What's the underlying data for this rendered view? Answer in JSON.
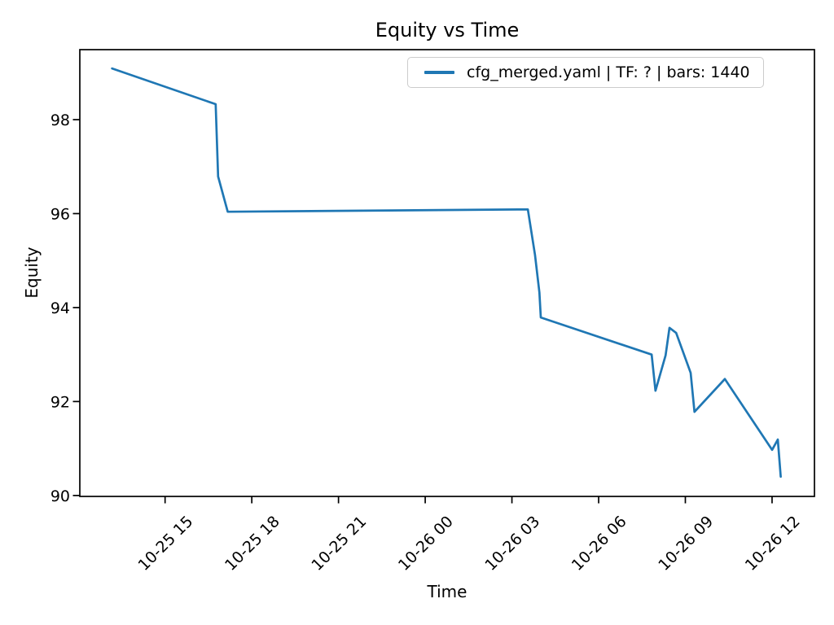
{
  "chart_data": {
    "type": "line",
    "title": "Equity vs Time",
    "xlabel": "Time",
    "ylabel": "Equity",
    "grid": false,
    "legend_position": "upper right",
    "background_color": "#ffffff",
    "frame_color": "#000000",
    "x_ticks": [
      "10-25 15",
      "10-25 18",
      "10-25 21",
      "10-26 00",
      "10-26 03",
      "10-26 06",
      "10-26 09",
      "10-26 12"
    ],
    "x_tick_rotation_deg": 45,
    "y_ticks": [
      90,
      92,
      94,
      96,
      98
    ],
    "xlim": [
      "10-25 12:03",
      "10-26 13:28"
    ],
    "ylim": [
      89.98,
      99.49
    ],
    "series": [
      {
        "name": "cfg_merged.yaml | TF: ? | bars: 1440",
        "color": "#1f77b4",
        "line_width": 2.7,
        "points": [
          {
            "time": "10-25 13:10",
            "equity": 99.09
          },
          {
            "time": "10-25 16:45",
            "equity": 98.33
          },
          {
            "time": "10-25 16:50",
            "equity": 96.79
          },
          {
            "time": "10-25 17:10",
            "equity": 96.04
          },
          {
            "time": "10-26 03:33",
            "equity": 96.09
          },
          {
            "time": "10-26 03:48",
            "equity": 95.12
          },
          {
            "time": "10-26 03:57",
            "equity": 94.32
          },
          {
            "time": "10-26 04:00",
            "equity": 93.79
          },
          {
            "time": "10-26 07:50",
            "equity": 93.0
          },
          {
            "time": "10-26 07:58",
            "equity": 92.23
          },
          {
            "time": "10-26 08:19",
            "equity": 92.98
          },
          {
            "time": "10-26 08:27",
            "equity": 93.57
          },
          {
            "time": "10-26 08:41",
            "equity": 93.46
          },
          {
            "time": "10-26 09:11",
            "equity": 92.61
          },
          {
            "time": "10-26 09:19",
            "equity": 91.78
          },
          {
            "time": "10-26 10:22",
            "equity": 92.48
          },
          {
            "time": "10-26 12:00",
            "equity": 90.97
          },
          {
            "time": "10-26 12:12",
            "equity": 91.19
          },
          {
            "time": "10-26 12:18",
            "equity": 90.4
          }
        ]
      }
    ]
  }
}
